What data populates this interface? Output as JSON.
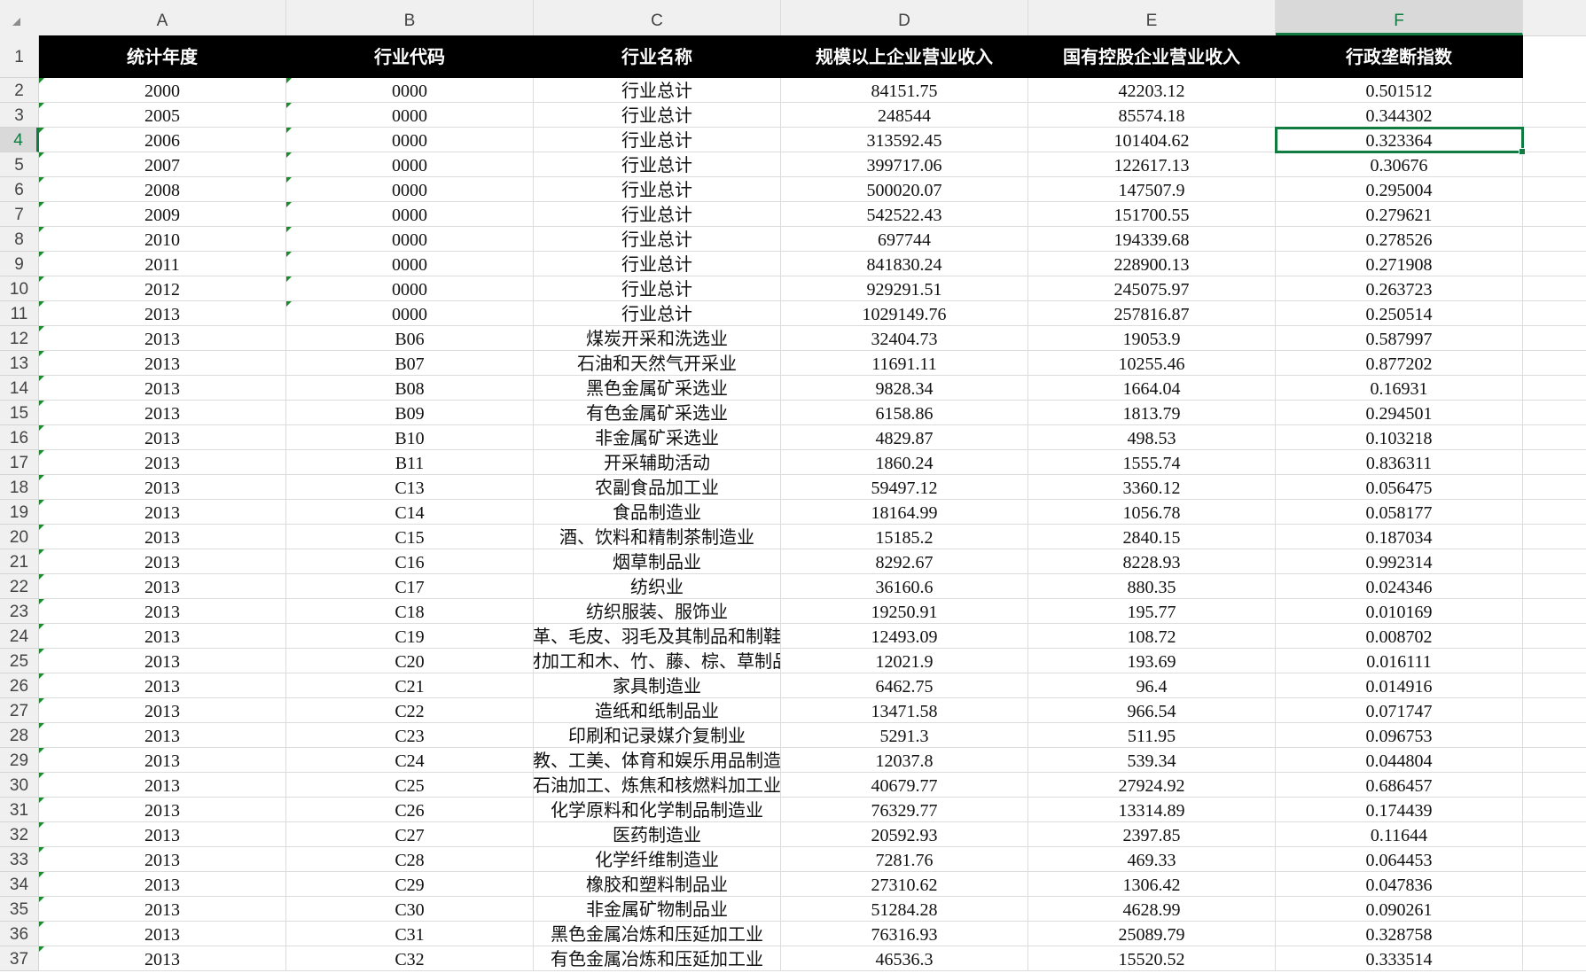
{
  "sheet": {
    "column_letters": [
      "A",
      "B",
      "C",
      "D",
      "E",
      "F"
    ],
    "selected_cell": "F4",
    "selected_column": "F",
    "selected_row": 4,
    "accent_color": "#107c41",
    "headers": [
      "统计年度",
      "行业代码",
      "行业名称",
      "规模以上企业营业收入",
      "国有控股企业营业收入",
      "行政垄断指数"
    ],
    "rows": [
      [
        "2000",
        "0000",
        "行业总计",
        "84151.75",
        "42203.12",
        "0.501512"
      ],
      [
        "2005",
        "0000",
        "行业总计",
        "248544",
        "85574.18",
        "0.344302"
      ],
      [
        "2006",
        "0000",
        "行业总计",
        "313592.45",
        "101404.62",
        "0.323364"
      ],
      [
        "2007",
        "0000",
        "行业总计",
        "399717.06",
        "122617.13",
        "0.30676"
      ],
      [
        "2008",
        "0000",
        "行业总计",
        "500020.07",
        "147507.9",
        "0.295004"
      ],
      [
        "2009",
        "0000",
        "行业总计",
        "542522.43",
        "151700.55",
        "0.279621"
      ],
      [
        "2010",
        "0000",
        "行业总计",
        "697744",
        "194339.68",
        "0.278526"
      ],
      [
        "2011",
        "0000",
        "行业总计",
        "841830.24",
        "228900.13",
        "0.271908"
      ],
      [
        "2012",
        "0000",
        "行业总计",
        "929291.51",
        "245075.97",
        "0.263723"
      ],
      [
        "2013",
        "0000",
        "行业总计",
        "1029149.76",
        "257816.87",
        "0.250514"
      ],
      [
        "2013",
        "B06",
        "煤炭开采和洗选业",
        "32404.73",
        "19053.9",
        "0.587997"
      ],
      [
        "2013",
        "B07",
        "石油和天然气开采业",
        "11691.11",
        "10255.46",
        "0.877202"
      ],
      [
        "2013",
        "B08",
        "黑色金属矿采选业",
        "9828.34",
        "1664.04",
        "0.16931"
      ],
      [
        "2013",
        "B09",
        "有色金属矿采选业",
        "6158.86",
        "1813.79",
        "0.294501"
      ],
      [
        "2013",
        "B10",
        "非金属矿采选业",
        "4829.87",
        "498.53",
        "0.103218"
      ],
      [
        "2013",
        "B11",
        "开采辅助活动",
        "1860.24",
        "1555.74",
        "0.836311"
      ],
      [
        "2013",
        "C13",
        "农副食品加工业",
        "59497.12",
        "3360.12",
        "0.056475"
      ],
      [
        "2013",
        "C14",
        "食品制造业",
        "18164.99",
        "1056.78",
        "0.058177"
      ],
      [
        "2013",
        "C15",
        "酒、饮料和精制茶制造业",
        "15185.2",
        "2840.15",
        "0.187034"
      ],
      [
        "2013",
        "C16",
        "烟草制品业",
        "8292.67",
        "8228.93",
        "0.992314"
      ],
      [
        "2013",
        "C17",
        "纺织业",
        "36160.6",
        "880.35",
        "0.024346"
      ],
      [
        "2013",
        "C18",
        "纺织服装、服饰业",
        "19250.91",
        "195.77",
        "0.010169"
      ],
      [
        "2013",
        "C19",
        "皮革、毛皮、羽毛及其制品和制鞋业",
        "12493.09",
        "108.72",
        "0.008702"
      ],
      [
        "2013",
        "C20",
        "木材加工和木、竹、藤、棕、草制品业",
        "12021.9",
        "193.69",
        "0.016111"
      ],
      [
        "2013",
        "C21",
        "家具制造业",
        "6462.75",
        "96.4",
        "0.014916"
      ],
      [
        "2013",
        "C22",
        "造纸和纸制品业",
        "13471.58",
        "966.54",
        "0.071747"
      ],
      [
        "2013",
        "C23",
        "印刷和记录媒介复制业",
        "5291.3",
        "511.95",
        "0.096753"
      ],
      [
        "2013",
        "C24",
        "文教、工美、体育和娱乐用品制造业",
        "12037.8",
        "539.34",
        "0.044804"
      ],
      [
        "2013",
        "C25",
        "石油加工、炼焦和核燃料加工业",
        "40679.77",
        "27924.92",
        "0.686457"
      ],
      [
        "2013",
        "C26",
        "化学原料和化学制品制造业",
        "76329.77",
        "13314.89",
        "0.174439"
      ],
      [
        "2013",
        "C27",
        "医药制造业",
        "20592.93",
        "2397.85",
        "0.11644"
      ],
      [
        "2013",
        "C28",
        "化学纤维制造业",
        "7281.76",
        "469.33",
        "0.064453"
      ],
      [
        "2013",
        "C29",
        "橡胶和塑料制品业",
        "27310.62",
        "1306.42",
        "0.047836"
      ],
      [
        "2013",
        "C30",
        "非金属矿物制品业",
        "51284.28",
        "4628.99",
        "0.090261"
      ],
      [
        "2013",
        "C31",
        "黑色金属冶炼和压延加工业",
        "76316.93",
        "25089.79",
        "0.328758"
      ],
      [
        "2013",
        "C32",
        "有色金属冶炼和压延加工业",
        "46536.3",
        "15520.52",
        "0.333514"
      ]
    ]
  }
}
